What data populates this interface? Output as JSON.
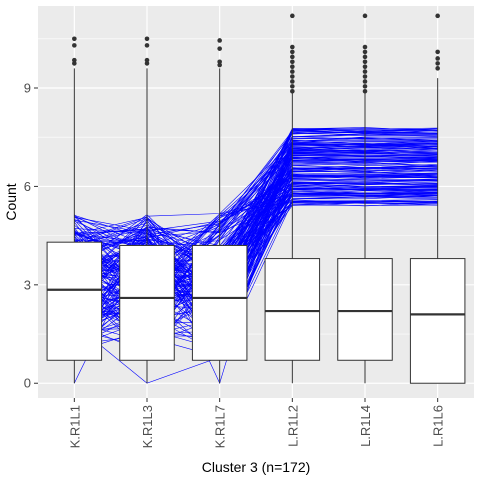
{
  "chart_data": {
    "type": "box_with_profile_lines",
    "title": "",
    "xlabel": "Cluster 3 (n=172)",
    "ylabel": "Count",
    "categories": [
      "K.R1L1",
      "K.R1L3",
      "K.R1L7",
      "L.R1L2",
      "L.R1L4",
      "L.R1L6"
    ],
    "ylim": [
      -0.45,
      11.5
    ],
    "yticks": [
      0,
      3,
      6,
      9
    ],
    "grid": true,
    "line_count": 172,
    "line_color": "#0000ff",
    "boxes": [
      {
        "category": "K.R1L1",
        "min": 0,
        "q1": 0.7,
        "median": 2.85,
        "q3": 4.3,
        "max": 9.6,
        "outliers": [
          9.75,
          9.85,
          10.3,
          10.5
        ]
      },
      {
        "category": "K.R1L3",
        "min": 0,
        "q1": 0.7,
        "median": 2.6,
        "q3": 4.2,
        "max": 9.6,
        "outliers": [
          9.75,
          9.85,
          10.3,
          10.5
        ]
      },
      {
        "category": "K.R1L7",
        "min": 0,
        "q1": 0.7,
        "median": 2.6,
        "q3": 4.2,
        "max": 9.6,
        "outliers": [
          9.7,
          9.8,
          10.2,
          10.45
        ]
      },
      {
        "category": "L.R1L2",
        "min": 0,
        "q1": 0.7,
        "median": 2.2,
        "q3": 3.8,
        "max": 8.9,
        "outliers": [
          8.9,
          9.05,
          9.2,
          9.35,
          9.5,
          9.65,
          9.8,
          9.95,
          10.1,
          10.25,
          11.2
        ]
      },
      {
        "category": "L.R1L4",
        "min": 0,
        "q1": 0.7,
        "median": 2.2,
        "q3": 3.8,
        "max": 8.9,
        "outliers": [
          8.9,
          9.05,
          9.2,
          9.35,
          9.5,
          9.65,
          9.8,
          9.95,
          10.1,
          10.25,
          11.2
        ]
      },
      {
        "category": "L.R1L6",
        "min": 0,
        "q1": 0.0,
        "median": 2.1,
        "q3": 3.8,
        "max": 9.3,
        "outliers": [
          9.6,
          9.75,
          9.9,
          10.1,
          11.2
        ]
      }
    ],
    "line_ranges": [
      [
        0,
        5.2
      ],
      [
        0,
        5.2
      ],
      [
        0,
        5.2
      ],
      [
        5.4,
        7.8
      ],
      [
        5.4,
        7.8
      ],
      [
        5.4,
        7.8
      ]
    ],
    "colors": {
      "panel": "#ebebeb",
      "grid": "#ffffff",
      "box_fill": "#ffffff",
      "box_stroke": "#333333",
      "outlier": "#333333"
    }
  }
}
